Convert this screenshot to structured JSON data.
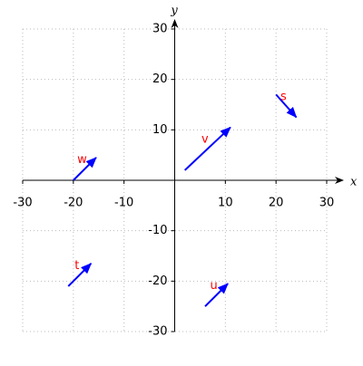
{
  "chart_data": {
    "type": "vector",
    "xlabel": "x",
    "ylabel": "y",
    "xlim": [
      -30,
      30
    ],
    "ylim": [
      -30,
      30
    ],
    "xticks": [
      -30,
      -20,
      -10,
      10,
      20,
      30
    ],
    "yticks": [
      -30,
      -20,
      -10,
      10,
      20,
      30
    ],
    "grid": true,
    "color": "#0000ff",
    "label_color": "#ff0000",
    "vectors": [
      {
        "name": "v",
        "start": [
          2,
          2
        ],
        "end": [
          11,
          10.5
        ]
      },
      {
        "name": "s",
        "start": [
          20,
          17
        ],
        "end": [
          24,
          12.5
        ]
      },
      {
        "name": "w",
        "start": [
          -20,
          0
        ],
        "end": [
          -15.5,
          4.5
        ]
      },
      {
        "name": "t",
        "start": [
          -21,
          -21
        ],
        "end": [
          -16.5,
          -16.5
        ]
      },
      {
        "name": "u",
        "start": [
          6,
          -25
        ],
        "end": [
          10.5,
          -20.5
        ]
      }
    ]
  }
}
